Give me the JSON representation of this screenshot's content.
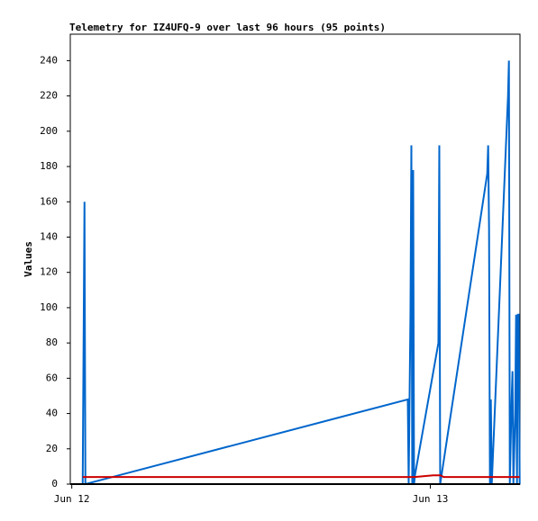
{
  "chart_data": {
    "type": "line",
    "title": "Telemetry for IZ4UFQ-9 over last 96 hours (95 points)",
    "y_label": "Values",
    "xlim": [
      -0.1,
      30.0
    ],
    "xticks": [
      {
        "value": 0,
        "label": "Jun 12"
      },
      {
        "value": 24,
        "label": "Jun 13"
      }
    ],
    "ylim": [
      0,
      255
    ],
    "yticks": [
      0,
      20,
      40,
      60,
      80,
      100,
      120,
      140,
      160,
      180,
      200,
      220,
      240
    ],
    "series": [
      {
        "color": "#0066cc",
        "x": [
          0.73,
          0.79,
          0.85,
          0.91,
          22.49,
          22.55,
          22.67,
          22.73,
          22.79,
          22.85,
          22.91,
          22.97,
          24.54,
          24.6,
          24.66,
          27.81,
          27.87,
          27.93,
          27.99,
          28.05,
          28.11,
          29.2,
          29.26,
          29.32,
          29.44,
          29.5,
          29.56,
          29.68,
          29.74,
          29.8,
          29.86,
          29.92,
          29.98
        ],
        "values": [
          0,
          80,
          160,
          0,
          48,
          0,
          97,
          192,
          0,
          178,
          0,
          5,
          80,
          192,
          0,
          176,
          192,
          145,
          0,
          48,
          0,
          220,
          240,
          0,
          48,
          64,
          0,
          40,
          96,
          0,
          96,
          96,
          0
        ]
      },
      {
        "color": "#cc0000",
        "x": [
          0.73,
          22.97,
          23.6,
          24.2,
          24.66,
          24.9,
          29.98
        ],
        "values": [
          4,
          4,
          4.5,
          5,
          5,
          4,
          4
        ]
      },
      {
        "color": "#000000",
        "x": [
          -0.1,
          30.0
        ],
        "values": [
          0,
          0
        ]
      }
    ]
  }
}
